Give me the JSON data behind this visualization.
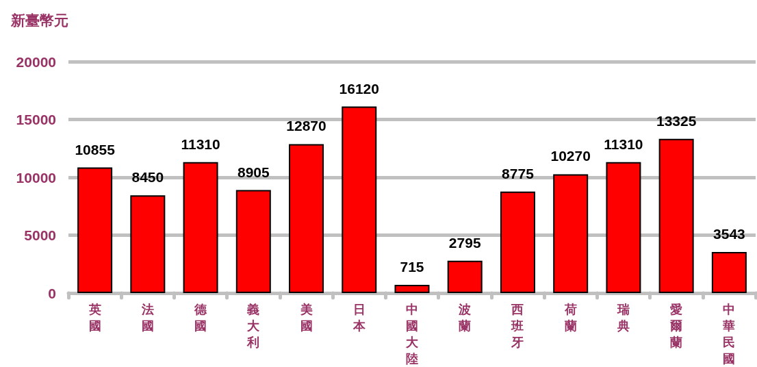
{
  "chart_data": {
    "type": "bar",
    "ylabel": "新臺幣元",
    "categories": [
      "英國",
      "法國",
      "德國",
      "義大利",
      "美國",
      "日本",
      "中國大陸",
      "波蘭",
      "西班牙",
      "荷蘭",
      "瑞典",
      "愛爾蘭",
      "中華民國"
    ],
    "values": [
      10855,
      8450,
      11310,
      8905,
      12870,
      16120,
      715,
      2795,
      8775,
      10270,
      11310,
      13325,
      3543
    ],
    "color": "#ff0000",
    "ylim": [
      0,
      20000
    ],
    "yticks": [
      0,
      5000,
      10000,
      15000,
      20000
    ],
    "grid": "y",
    "data_labels": true
  }
}
